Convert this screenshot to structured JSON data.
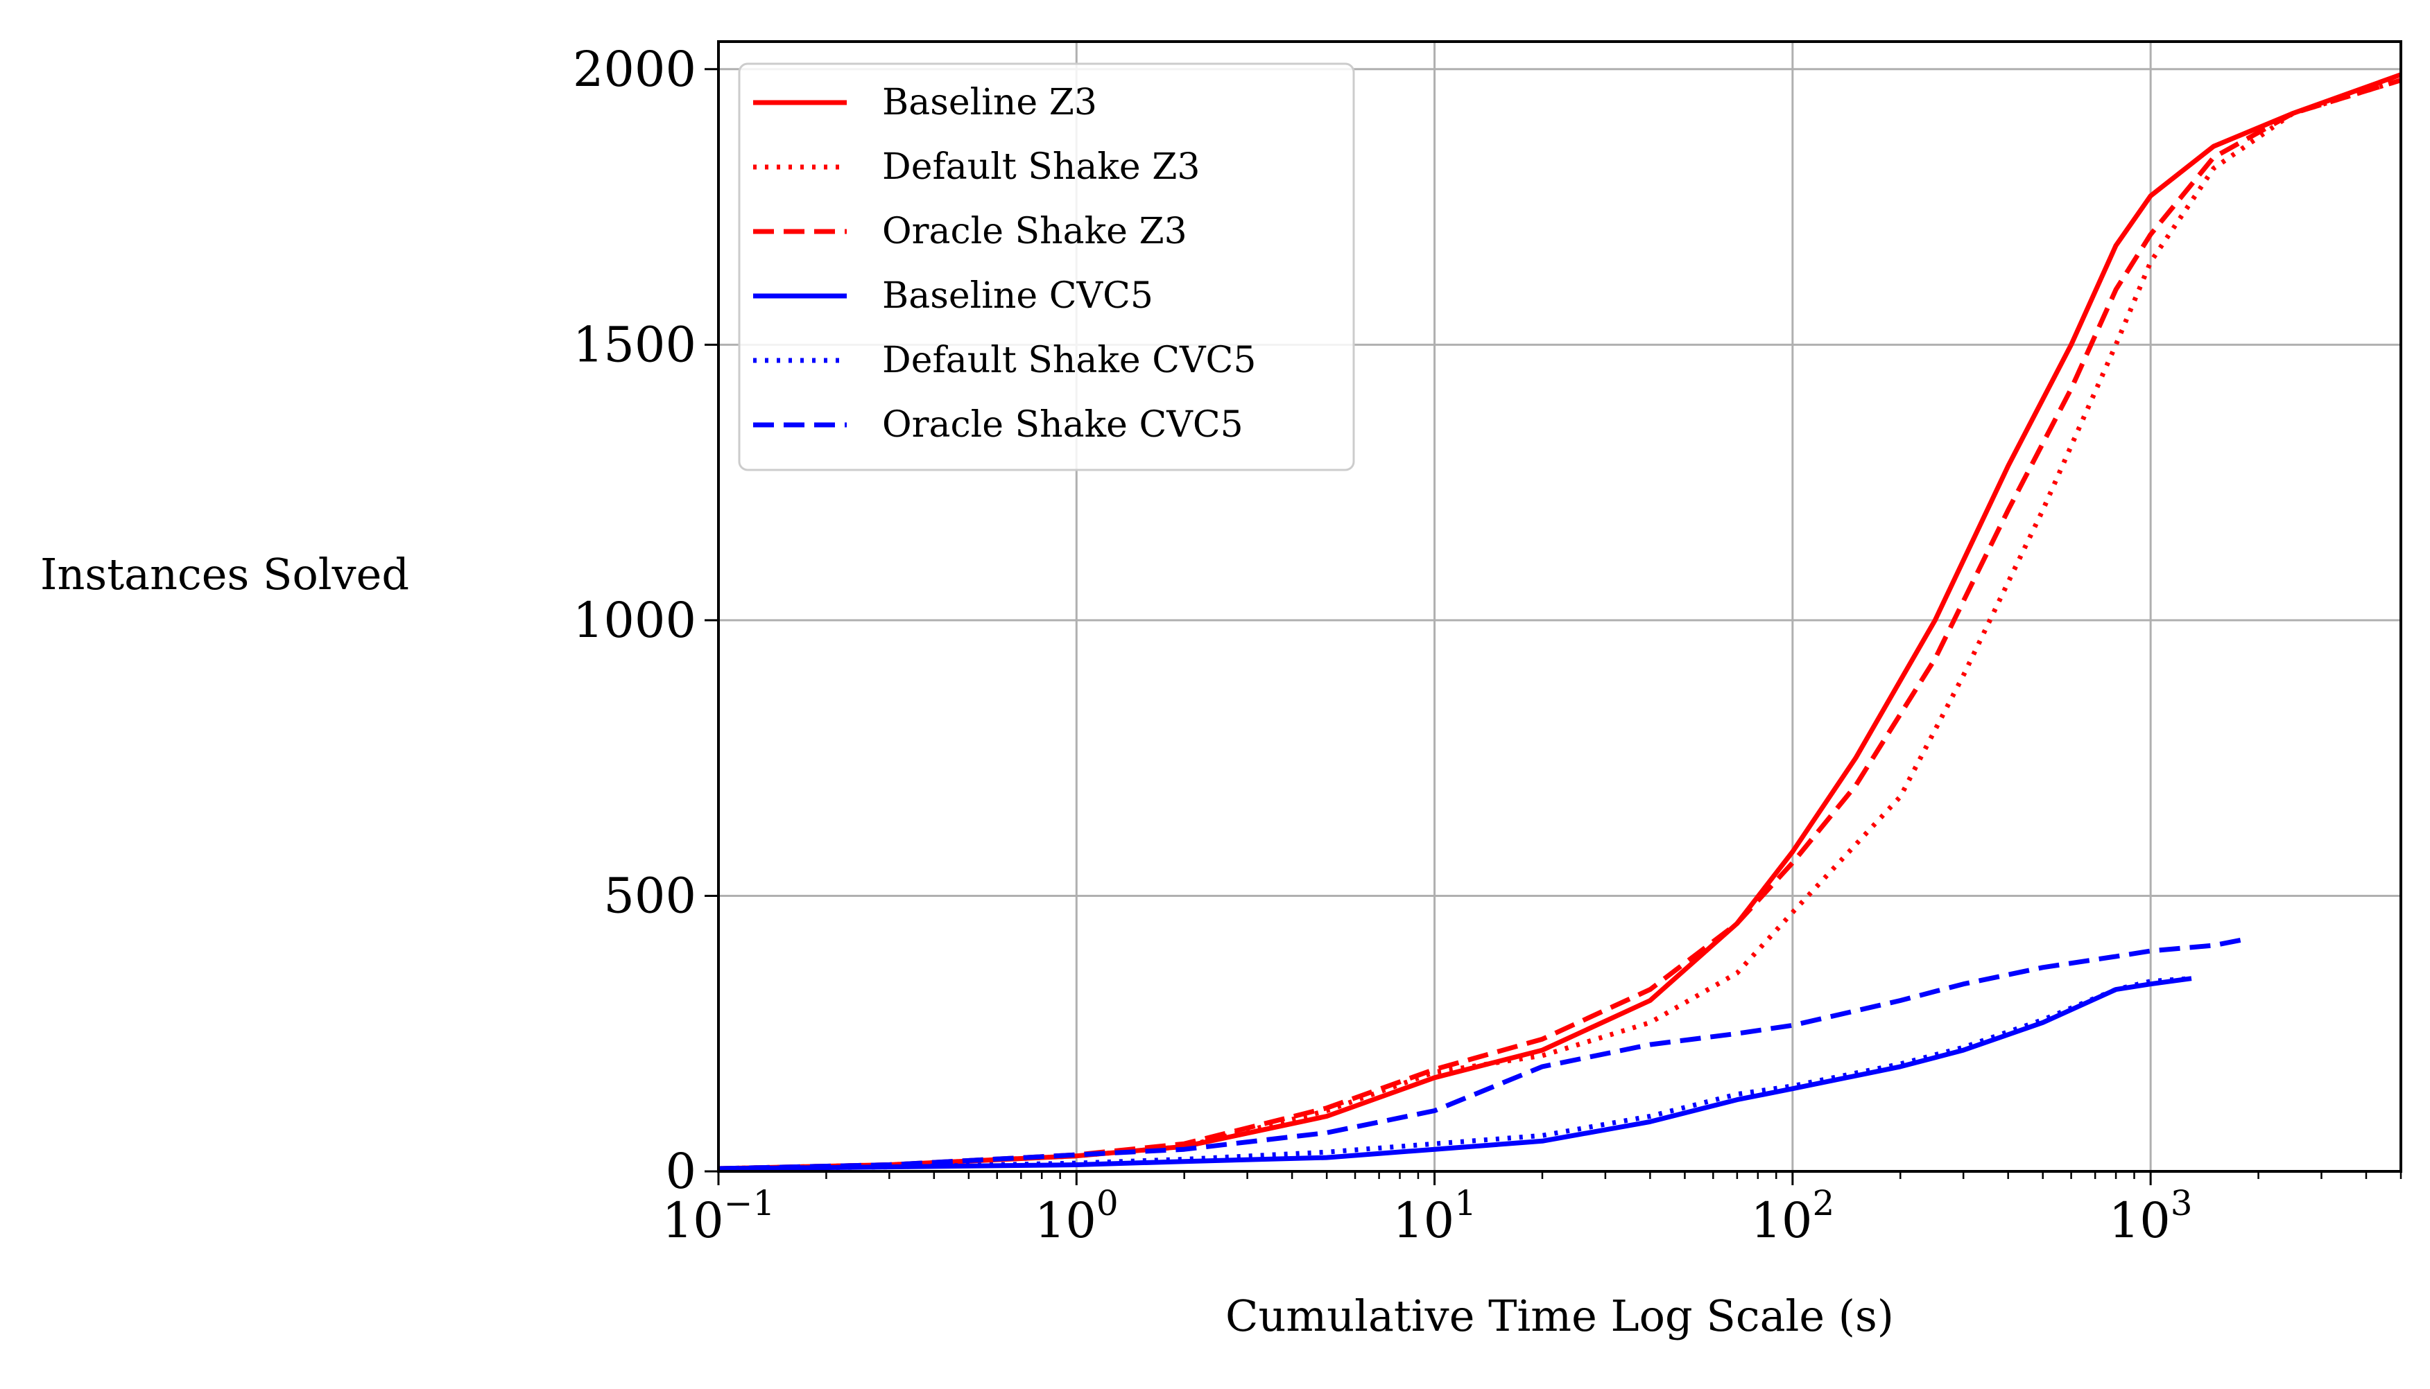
{
  "chart_data": {
    "type": "line",
    "title": "",
    "xlabel": "Cumulative Time Log Scale (s)",
    "ylabel": "Instances Solved",
    "x_scale": "log",
    "xlim": [
      0.1,
      5000
    ],
    "ylim": [
      0,
      2050
    ],
    "x_ticks": [
      {
        "value": 0.1,
        "base": "10",
        "exp": "−1"
      },
      {
        "value": 1,
        "base": "10",
        "exp": "0"
      },
      {
        "value": 10,
        "base": "10",
        "exp": "1"
      },
      {
        "value": 100,
        "base": "10",
        "exp": "2"
      },
      {
        "value": 1000,
        "base": "10",
        "exp": "3"
      }
    ],
    "y_ticks": [
      {
        "value": 0,
        "label": "0"
      },
      {
        "value": 500,
        "label": "500"
      },
      {
        "value": 1000,
        "label": "1000"
      },
      {
        "value": 1500,
        "label": "1500"
      },
      {
        "value": 2000,
        "label": "2000"
      }
    ],
    "grid": true,
    "legend_position": "top-left",
    "series": [
      {
        "name": "Baseline Z3",
        "color": "#ff0000",
        "dash": "solid",
        "points": [
          [
            0.1,
            5
          ],
          [
            0.3,
            12
          ],
          [
            1,
            28
          ],
          [
            2,
            45
          ],
          [
            5,
            100
          ],
          [
            10,
            170
          ],
          [
            20,
            220
          ],
          [
            40,
            310
          ],
          [
            70,
            450
          ],
          [
            100,
            580
          ],
          [
            150,
            750
          ],
          [
            250,
            1000
          ],
          [
            400,
            1280
          ],
          [
            600,
            1500
          ],
          [
            800,
            1680
          ],
          [
            1000,
            1770
          ],
          [
            1500,
            1860
          ],
          [
            2500,
            1920
          ],
          [
            5000,
            1990
          ]
        ]
      },
      {
        "name": "Default Shake Z3",
        "color": "#ff0000",
        "dash": "dotted",
        "points": [
          [
            0.1,
            5
          ],
          [
            0.3,
            12
          ],
          [
            1,
            28
          ],
          [
            2,
            45
          ],
          [
            5,
            110
          ],
          [
            10,
            180
          ],
          [
            20,
            210
          ],
          [
            40,
            270
          ],
          [
            70,
            360
          ],
          [
            100,
            470
          ],
          [
            200,
            680
          ],
          [
            300,
            900
          ],
          [
            500,
            1200
          ],
          [
            800,
            1500
          ],
          [
            1000,
            1650
          ],
          [
            1500,
            1820
          ],
          [
            2500,
            1920
          ],
          [
            5000,
            1980
          ]
        ]
      },
      {
        "name": "Oracle Shake Z3",
        "color": "#ff0000",
        "dash": "dashed",
        "points": [
          [
            0.1,
            5
          ],
          [
            0.3,
            12
          ],
          [
            1,
            30
          ],
          [
            2,
            50
          ],
          [
            5,
            115
          ],
          [
            10,
            185
          ],
          [
            20,
            240
          ],
          [
            40,
            330
          ],
          [
            70,
            450
          ],
          [
            100,
            560
          ],
          [
            150,
            700
          ],
          [
            250,
            930
          ],
          [
            400,
            1200
          ],
          [
            600,
            1420
          ],
          [
            800,
            1600
          ],
          [
            1000,
            1700
          ],
          [
            1500,
            1840
          ],
          [
            2500,
            1920
          ],
          [
            5000,
            1980
          ]
        ]
      },
      {
        "name": "Baseline CVC5",
        "color": "#0000ff",
        "dash": "solid",
        "points": [
          [
            0.1,
            5
          ],
          [
            0.3,
            8
          ],
          [
            1,
            12
          ],
          [
            2,
            18
          ],
          [
            5,
            25
          ],
          [
            10,
            40
          ],
          [
            20,
            55
          ],
          [
            40,
            90
          ],
          [
            70,
            130
          ],
          [
            100,
            150
          ],
          [
            200,
            190
          ],
          [
            300,
            220
          ],
          [
            500,
            270
          ],
          [
            800,
            330
          ],
          [
            1000,
            340
          ],
          [
            1300,
            350
          ]
        ]
      },
      {
        "name": "Default Shake CVC5",
        "color": "#0000ff",
        "dash": "dotted",
        "points": [
          [
            0.1,
            5
          ],
          [
            0.3,
            8
          ],
          [
            1,
            15
          ],
          [
            2,
            22
          ],
          [
            5,
            35
          ],
          [
            10,
            50
          ],
          [
            20,
            65
          ],
          [
            40,
            100
          ],
          [
            70,
            140
          ],
          [
            100,
            155
          ],
          [
            200,
            195
          ],
          [
            300,
            225
          ],
          [
            500,
            275
          ],
          [
            800,
            330
          ],
          [
            1000,
            345
          ],
          [
            1300,
            350
          ]
        ]
      },
      {
        "name": "Oracle Shake CVC5",
        "color": "#0000ff",
        "dash": "dashed",
        "points": [
          [
            0.1,
            5
          ],
          [
            0.3,
            12
          ],
          [
            1,
            30
          ],
          [
            2,
            40
          ],
          [
            5,
            70
          ],
          [
            10,
            110
          ],
          [
            20,
            190
          ],
          [
            40,
            230
          ],
          [
            70,
            250
          ],
          [
            100,
            265
          ],
          [
            200,
            310
          ],
          [
            300,
            340
          ],
          [
            500,
            370
          ],
          [
            800,
            390
          ],
          [
            1000,
            400
          ],
          [
            1500,
            410
          ],
          [
            1800,
            420
          ]
        ]
      }
    ]
  }
}
